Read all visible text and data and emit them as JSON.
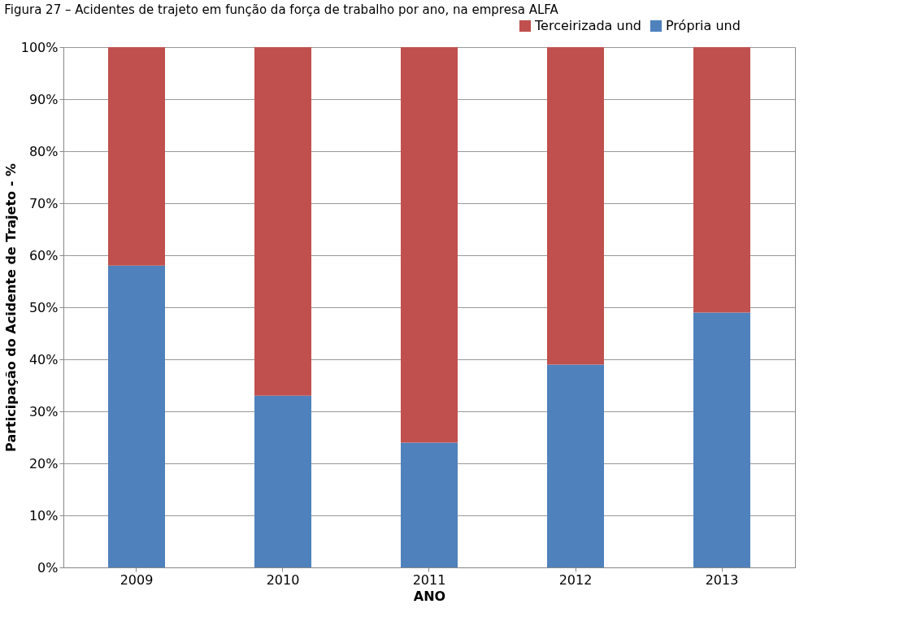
{
  "chart_data": {
    "type": "bar",
    "title": "Figura 27 – Acidentes de trajeto em função da força de trabalho por ano, na empresa ALFA",
    "xlabel": "ANO",
    "ylabel": "Participação do Acidente de Trajeto - %",
    "categories": [
      "2009",
      "2010",
      "2011",
      "2012",
      "2013"
    ],
    "stacked": true,
    "series": [
      {
        "name": "Própria und",
        "color": "#4f81bd",
        "values": [
          58,
          33,
          24,
          39,
          49
        ]
      },
      {
        "name": "Terceirizada und",
        "color": "#c0504d",
        "values": [
          42,
          67,
          76,
          61,
          51
        ]
      }
    ],
    "ylim": [
      0,
      100
    ],
    "yticks": [
      {
        "value": 0,
        "label": "0%"
      },
      {
        "value": 10,
        "label": "10%"
      },
      {
        "value": 20,
        "label": "20%"
      },
      {
        "value": 30,
        "label": "30%"
      },
      {
        "value": 40,
        "label": "40%"
      },
      {
        "value": 50,
        "label": "50%"
      },
      {
        "value": 60,
        "label": "60%"
      },
      {
        "value": 70,
        "label": "70%"
      },
      {
        "value": 80,
        "label": "80%"
      },
      {
        "value": 90,
        "label": "90%"
      },
      {
        "value": 100,
        "label": "100%"
      }
    ],
    "grid": "y",
    "legend": "top right"
  }
}
